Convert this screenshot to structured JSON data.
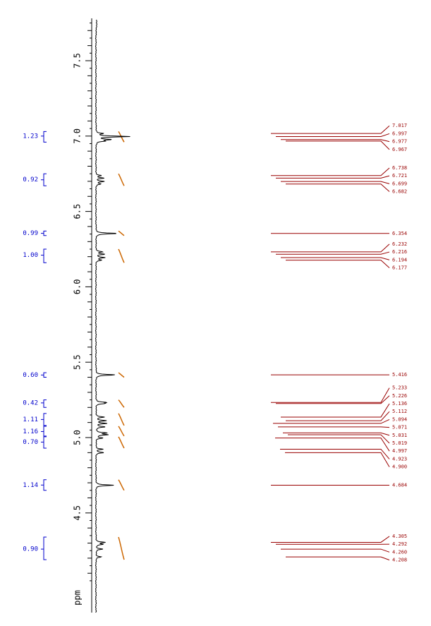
{
  "chart_data": {
    "type": "line",
    "title": "",
    "xlabel": "ppm",
    "ylabel": "",
    "xlim": [
      4.02,
      7.78
    ],
    "axis_reversed": true,
    "axis_tick_labels": [
      "7.5",
      "7.0",
      "6.5",
      "6.0",
      "5.5",
      "5.0",
      "4.5"
    ],
    "axis_tick_values": [
      7.5,
      7.0,
      6.5,
      6.0,
      5.5,
      5.0,
      4.5
    ],
    "integrals": [
      {
        "value": "1.23",
        "from": 7.03,
        "to": 6.96,
        "center": 7.0
      },
      {
        "value": "0.92",
        "from": 6.75,
        "to": 6.67,
        "center": 6.71
      },
      {
        "value": "0.99",
        "from": 6.37,
        "to": 6.34,
        "center": 6.355
      },
      {
        "value": "1.00",
        "from": 6.25,
        "to": 6.16,
        "center": 6.21
      },
      {
        "value": "0.60",
        "from": 5.43,
        "to": 5.4,
        "center": 5.415
      },
      {
        "value": "0.42",
        "from": 5.25,
        "to": 5.2,
        "center": 5.23
      },
      {
        "value": "1.11",
        "from": 5.16,
        "to": 5.08,
        "center": 5.12
      },
      {
        "value": "1.16",
        "from": 5.075,
        "to": 5.01,
        "center": 5.04
      },
      {
        "value": "0.70",
        "from": 5.005,
        "to": 4.93,
        "center": 4.97
      },
      {
        "value": "1.14",
        "from": 4.72,
        "to": 4.65,
        "center": 4.685
      },
      {
        "value": "0.90",
        "from": 4.34,
        "to": 4.19,
        "center": 4.26
      }
    ],
    "peak_labels": [
      {
        "label": "7.017",
        "ppm": 7.017
      },
      {
        "label": "6.997",
        "ppm": 6.997
      },
      {
        "label": "6.977",
        "ppm": 6.977
      },
      {
        "label": "6.967",
        "ppm": 6.967
      },
      {
        "label": "6.738",
        "ppm": 6.738
      },
      {
        "label": "6.721",
        "ppm": 6.721
      },
      {
        "label": "6.699",
        "ppm": 6.699
      },
      {
        "label": "6.682",
        "ppm": 6.682
      },
      {
        "label": "6.354",
        "ppm": 6.354
      },
      {
        "label": "6.232",
        "ppm": 6.232
      },
      {
        "label": "6.216",
        "ppm": 6.216
      },
      {
        "label": "6.194",
        "ppm": 6.194
      },
      {
        "label": "6.177",
        "ppm": 6.177
      },
      {
        "label": "5.416",
        "ppm": 5.416
      },
      {
        "label": "5.233",
        "ppm": 5.233
      },
      {
        "label": "5.226",
        "ppm": 5.226
      },
      {
        "label": "5.136",
        "ppm": 5.136
      },
      {
        "label": "5.112",
        "ppm": 5.112
      },
      {
        "label": "5.094",
        "ppm": 5.094
      },
      {
        "label": "5.071",
        "ppm": 5.071
      },
      {
        "label": "5.031",
        "ppm": 5.031
      },
      {
        "label": "5.019",
        "ppm": 5.019
      },
      {
        "label": "4.997",
        "ppm": 4.997
      },
      {
        "label": "4.923",
        "ppm": 4.923
      },
      {
        "label": "4.900",
        "ppm": 4.9
      },
      {
        "label": "4.684",
        "ppm": 4.684
      },
      {
        "label": "4.305",
        "ppm": 4.305
      },
      {
        "label": "4.292",
        "ppm": 4.292
      },
      {
        "label": "4.260",
        "ppm": 4.26
      },
      {
        "label": "4.208",
        "ppm": 4.208
      }
    ],
    "spectrum_peaks": [
      {
        "ppm": 7.017,
        "intensity": 0.18
      },
      {
        "ppm": 6.997,
        "intensity": 0.95
      },
      {
        "ppm": 6.977,
        "intensity": 0.42
      },
      {
        "ppm": 6.967,
        "intensity": 0.22
      },
      {
        "ppm": 6.738,
        "intensity": 0.14
      },
      {
        "ppm": 6.721,
        "intensity": 0.22
      },
      {
        "ppm": 6.699,
        "intensity": 0.24
      },
      {
        "ppm": 6.682,
        "intensity": 0.13
      },
      {
        "ppm": 6.354,
        "intensity": 0.62
      },
      {
        "ppm": 6.232,
        "intensity": 0.18
      },
      {
        "ppm": 6.216,
        "intensity": 0.25
      },
      {
        "ppm": 6.194,
        "intensity": 0.26
      },
      {
        "ppm": 6.177,
        "intensity": 0.16
      },
      {
        "ppm": 5.416,
        "intensity": 0.56
      },
      {
        "ppm": 5.233,
        "intensity": 0.26
      },
      {
        "ppm": 5.226,
        "intensity": 0.22
      },
      {
        "ppm": 5.136,
        "intensity": 0.24
      },
      {
        "ppm": 5.112,
        "intensity": 0.28
      },
      {
        "ppm": 5.094,
        "intensity": 0.3
      },
      {
        "ppm": 5.071,
        "intensity": 0.26
      },
      {
        "ppm": 5.031,
        "intensity": 0.3
      },
      {
        "ppm": 5.019,
        "intensity": 0.33
      },
      {
        "ppm": 4.997,
        "intensity": 0.2
      },
      {
        "ppm": 4.923,
        "intensity": 0.2
      },
      {
        "ppm": 4.9,
        "intensity": 0.22
      },
      {
        "ppm": 4.684,
        "intensity": 0.5
      },
      {
        "ppm": 4.305,
        "intensity": 0.26
      },
      {
        "ppm": 4.292,
        "intensity": 0.2
      },
      {
        "ppm": 4.26,
        "intensity": 0.2
      },
      {
        "ppm": 4.208,
        "intensity": 0.16
      }
    ],
    "colors": {
      "spectrum": "#000000",
      "axis": "#000000",
      "integral_curve": "#cc6600",
      "integral_label": "#0000cc",
      "peak_label": "#990000"
    }
  }
}
